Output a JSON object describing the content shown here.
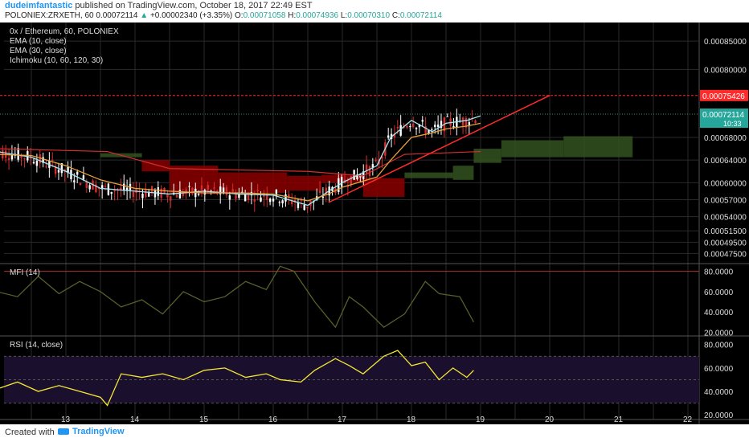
{
  "header": {
    "author": "dudeimfantastic",
    "published": "published on TradingView.com, October 18, 2017 22:49 EST",
    "symbol": "POLONIEX:ZRXETH, 60",
    "price": "0.00072114",
    "change": "+0.00002340 (+3.35%)",
    "o_label": "O:",
    "o": "0.00071058",
    "h_label": "H:",
    "h": "0.00074936",
    "l_label": "L:",
    "l": "0.00070310",
    "c_label": "C:",
    "c": "0.00072114"
  },
  "main_legend": [
    "0x / Ethereum, 60, POLONIEX",
    "EMA (10, close)",
    "EMA (30, close)",
    "Ichimoku (10, 60, 120, 30)"
  ],
  "footer": {
    "created_with": "Created with",
    "brand": "TradingView"
  },
  "colors": {
    "background": "#000000",
    "grid": "#2a2a2a",
    "ema10": "#a8e6f0",
    "ema30": "#e6a23c",
    "kijun": "#d32f2f",
    "cloud_bear": "#8b0000",
    "cloud_bull": "#33521f",
    "trend": "#ff2a2a",
    "resistance": "#ff2a2a",
    "mfi": "#55602a",
    "rsi": "#f5e733",
    "rsi_band": "#1b0f2e"
  },
  "chart_data": [
    {
      "type": "line",
      "title": "0x / Ethereum, 60, POLONIEX",
      "x_ticks": [
        "13",
        "14",
        "15",
        "16",
        "17",
        "18",
        "19",
        "20",
        "21",
        "22"
      ],
      "y_ticks": [
        "0.00085000",
        "0.00080000",
        "0.00075426",
        "0.00072114",
        "0.00068000",
        "0.00064000",
        "0.00060000",
        "0.00057000",
        "0.00054000",
        "0.00051500",
        "0.00049500",
        "0.00047500"
      ],
      "ylim": [
        0.00046,
        0.00088
      ],
      "price_label": "0.00072114",
      "resistance_label": "0.00075426",
      "countdown": "10:33",
      "series": [
        {
          "name": "EMA (10, close)",
          "x": [
            12.0,
            12.5,
            13.0,
            13.5,
            14.0,
            14.5,
            15.0,
            15.5,
            16.0,
            16.5,
            16.8,
            17.0,
            17.5,
            17.7,
            18.0,
            18.3,
            18.5,
            18.8,
            19.0
          ],
          "values": [
            0.000655,
            0.000645,
            0.00062,
            0.00059,
            0.000585,
            0.00058,
            0.000585,
            0.00058,
            0.000578,
            0.00056,
            0.000585,
            0.0006,
            0.00063,
            0.00068,
            0.00071,
            0.00069,
            0.000705,
            0.00071,
            0.000718
          ]
        },
        {
          "name": "EMA (30, close)",
          "x": [
            12.0,
            12.5,
            13.0,
            13.5,
            14.0,
            14.5,
            15.0,
            15.5,
            16.0,
            16.5,
            16.8,
            17.0,
            17.5,
            17.7,
            18.0,
            18.3,
            18.5,
            18.8,
            19.0
          ],
          "values": [
            0.00065,
            0.000648,
            0.00063,
            0.000605,
            0.00059,
            0.000585,
            0.000582,
            0.000582,
            0.00058,
            0.000568,
            0.00058,
            0.000592,
            0.00061,
            0.00064,
            0.00068,
            0.000688,
            0.000695,
            0.0007,
            0.000705
          ]
        }
      ]
    },
    {
      "type": "line",
      "title": "MFI (14)",
      "y_ticks": [
        "80.0000",
        "60.0000",
        "40.0000",
        "20.0000"
      ],
      "ylim": [
        18,
        86
      ],
      "series": [
        {
          "name": "MFI (14)",
          "x": [
            12.0,
            12.3,
            12.6,
            12.9,
            13.2,
            13.5,
            13.8,
            14.1,
            14.4,
            14.7,
            15.0,
            15.3,
            15.6,
            15.9,
            16.1,
            16.3,
            16.6,
            16.9,
            17.1,
            17.3,
            17.6,
            17.9,
            18.2,
            18.4,
            18.7,
            18.9
          ],
          "values": [
            60,
            55,
            75,
            58,
            70,
            60,
            45,
            52,
            38,
            60,
            50,
            55,
            70,
            62,
            85,
            80,
            50,
            25,
            55,
            45,
            25,
            38,
            70,
            58,
            55,
            30
          ]
        }
      ]
    },
    {
      "type": "line",
      "title": "RSI (14, close)",
      "y_ticks": [
        "80.0000",
        "60.0000",
        "40.0000",
        "20.0000"
      ],
      "ylim": [
        16,
        86
      ],
      "series": [
        {
          "name": "RSI (14, close)",
          "x": [
            12.0,
            12.3,
            12.6,
            12.9,
            13.2,
            13.5,
            13.6,
            13.8,
            14.1,
            14.4,
            14.7,
            15.0,
            15.3,
            15.6,
            15.9,
            16.1,
            16.4,
            16.6,
            16.9,
            17.1,
            17.3,
            17.6,
            17.8,
            18.0,
            18.2,
            18.4,
            18.6,
            18.8,
            18.9
          ],
          "values": [
            42,
            48,
            40,
            45,
            40,
            35,
            28,
            55,
            52,
            55,
            50,
            58,
            60,
            52,
            55,
            50,
            48,
            58,
            68,
            62,
            55,
            70,
            75,
            62,
            65,
            50,
            60,
            52,
            58
          ]
        }
      ]
    }
  ]
}
